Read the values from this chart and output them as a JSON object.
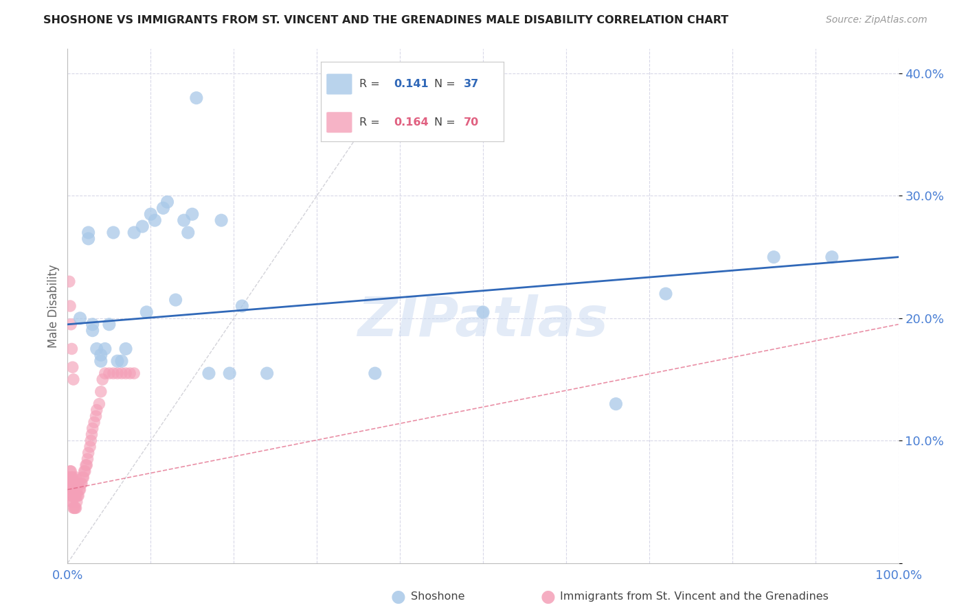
{
  "title": "SHOSHONE VS IMMIGRANTS FROM ST. VINCENT AND THE GRENADINES MALE DISABILITY CORRELATION CHART",
  "source": "Source: ZipAtlas.com",
  "ylabel": "Male Disability",
  "watermark": "ZIPatlas",
  "xlim": [
    0,
    1.0
  ],
  "ylim": [
    0,
    0.42
  ],
  "xtick_positions": [
    0.0,
    0.1,
    0.2,
    0.3,
    0.4,
    0.5,
    0.6,
    0.7,
    0.8,
    0.9,
    1.0
  ],
  "xtick_labels": [
    "0.0%",
    "",
    "",
    "",
    "",
    "",
    "",
    "",
    "",
    "",
    "100.0%"
  ],
  "ytick_positions": [
    0.0,
    0.1,
    0.2,
    0.3,
    0.4
  ],
  "ytick_labels": [
    "",
    "10.0%",
    "20.0%",
    "30.0%",
    "40.0%"
  ],
  "shoshone_color": "#a8c8e8",
  "svg_color": "#f4a0b8",
  "trendline_blue_color": "#3068b8",
  "trendline_pink_color": "#e06080",
  "diagonal_color": "#c8c8d0",
  "grid_color": "#d8d8e8",
  "title_color": "#222222",
  "axis_label_color": "#666666",
  "tick_color": "#4a7fd4",
  "watermark_color": "#c8d8f0",
  "shoshone_x": [
    0.015,
    0.025,
    0.025,
    0.03,
    0.03,
    0.035,
    0.04,
    0.04,
    0.045,
    0.05,
    0.055,
    0.06,
    0.065,
    0.07,
    0.08,
    0.09,
    0.095,
    0.1,
    0.105,
    0.115,
    0.12,
    0.13,
    0.14,
    0.145,
    0.15,
    0.155,
    0.17,
    0.185,
    0.195,
    0.21,
    0.24,
    0.37,
    0.5,
    0.66,
    0.72,
    0.85,
    0.92
  ],
  "shoshone_y": [
    0.2,
    0.265,
    0.27,
    0.19,
    0.195,
    0.175,
    0.165,
    0.17,
    0.175,
    0.195,
    0.27,
    0.165,
    0.165,
    0.175,
    0.27,
    0.275,
    0.205,
    0.285,
    0.28,
    0.29,
    0.295,
    0.215,
    0.28,
    0.27,
    0.285,
    0.38,
    0.155,
    0.28,
    0.155,
    0.21,
    0.155,
    0.155,
    0.205,
    0.13,
    0.22,
    0.25,
    0.25
  ],
  "svg_x": [
    0.002,
    0.002,
    0.003,
    0.003,
    0.003,
    0.004,
    0.004,
    0.004,
    0.004,
    0.005,
    0.005,
    0.005,
    0.006,
    0.006,
    0.006,
    0.006,
    0.007,
    0.007,
    0.007,
    0.008,
    0.008,
    0.008,
    0.009,
    0.009,
    0.01,
    0.01,
    0.01,
    0.01,
    0.011,
    0.011,
    0.012,
    0.012,
    0.013,
    0.013,
    0.014,
    0.015,
    0.016,
    0.017,
    0.018,
    0.019,
    0.02,
    0.021,
    0.022,
    0.023,
    0.024,
    0.025,
    0.027,
    0.028,
    0.029,
    0.03,
    0.032,
    0.034,
    0.035,
    0.038,
    0.04,
    0.042,
    0.045,
    0.05,
    0.055,
    0.06,
    0.065,
    0.07,
    0.075,
    0.08,
    0.002,
    0.003,
    0.004,
    0.005,
    0.006,
    0.007
  ],
  "svg_y": [
    0.065,
    0.07,
    0.06,
    0.07,
    0.075,
    0.055,
    0.065,
    0.07,
    0.075,
    0.05,
    0.06,
    0.07,
    0.05,
    0.055,
    0.065,
    0.07,
    0.045,
    0.055,
    0.065,
    0.045,
    0.055,
    0.065,
    0.045,
    0.055,
    0.045,
    0.055,
    0.065,
    0.07,
    0.05,
    0.06,
    0.055,
    0.065,
    0.055,
    0.065,
    0.06,
    0.06,
    0.065,
    0.065,
    0.07,
    0.07,
    0.075,
    0.075,
    0.08,
    0.08,
    0.085,
    0.09,
    0.095,
    0.1,
    0.105,
    0.11,
    0.115,
    0.12,
    0.125,
    0.13,
    0.14,
    0.15,
    0.155,
    0.155,
    0.155,
    0.155,
    0.155,
    0.155,
    0.155,
    0.155,
    0.23,
    0.21,
    0.195,
    0.175,
    0.16,
    0.15
  ],
  "trendline_blue_start_y": 0.195,
  "trendline_blue_end_y": 0.25,
  "trendline_pink_start_y": 0.06,
  "trendline_pink_end_y": 0.195,
  "figsize": [
    14.06,
    8.92
  ],
  "dpi": 100
}
